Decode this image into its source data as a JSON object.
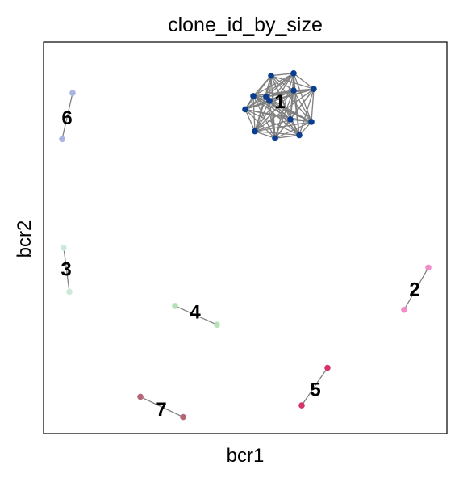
{
  "chart_data": {
    "type": "scatter",
    "title": "clone_id_by_size",
    "xlabel": "bcr1",
    "ylabel": "bcr2",
    "xlim": [
      0,
      100
    ],
    "ylim": [
      0,
      100
    ],
    "ticks": "none",
    "grid": false,
    "clusters": [
      {
        "label": "1",
        "color": "#0b3d91",
        "label_pos": [
          58.6,
          85.0
        ],
        "fully_connected": true,
        "nodes": [
          [
            62.0,
            92.0
          ],
          [
            56.4,
            91.4
          ],
          [
            67.0,
            88.0
          ],
          [
            52.0,
            86.2
          ],
          [
            62.0,
            87.6
          ],
          [
            56.0,
            85.0
          ],
          [
            50.0,
            82.8
          ],
          [
            66.4,
            79.6
          ],
          [
            61.2,
            80.2
          ],
          [
            52.4,
            77.2
          ],
          [
            57.4,
            75.4
          ],
          [
            63.4,
            76.2
          ],
          [
            55.2,
            86.0
          ]
        ]
      },
      {
        "label": "2",
        "color": "#f08cc8",
        "label_pos": [
          92.0,
          37.0
        ],
        "fully_connected": true,
        "nodes": [
          [
            95.4,
            42.4
          ],
          [
            89.4,
            31.6
          ]
        ]
      },
      {
        "label": "3",
        "color": "#cfe8d8",
        "label_pos": [
          5.6,
          42.2
        ],
        "fully_connected": true,
        "nodes": [
          [
            5.0,
            47.4
          ],
          [
            6.4,
            36.2
          ]
        ]
      },
      {
        "label": "4",
        "color": "#b8e0b8",
        "label_pos": [
          37.6,
          31.2
        ],
        "fully_connected": true,
        "nodes": [
          [
            32.6,
            32.6
          ],
          [
            43.0,
            27.8
          ]
        ]
      },
      {
        "label": "5",
        "color": "#d6336c",
        "label_pos": [
          67.4,
          11.4
        ],
        "fully_connected": true,
        "nodes": [
          [
            70.4,
            16.8
          ],
          [
            64.0,
            7.2
          ]
        ]
      },
      {
        "label": "6",
        "color": "#a9b4e0",
        "label_pos": [
          5.8,
          80.8
        ],
        "fully_connected": true,
        "nodes": [
          [
            7.2,
            87.0
          ],
          [
            4.6,
            75.2
          ]
        ]
      },
      {
        "label": "7",
        "color": "#b56576",
        "label_pos": [
          29.2,
          6.4
        ],
        "fully_connected": true,
        "nodes": [
          [
            24.0,
            9.4
          ],
          [
            34.6,
            4.2
          ]
        ]
      }
    ]
  }
}
